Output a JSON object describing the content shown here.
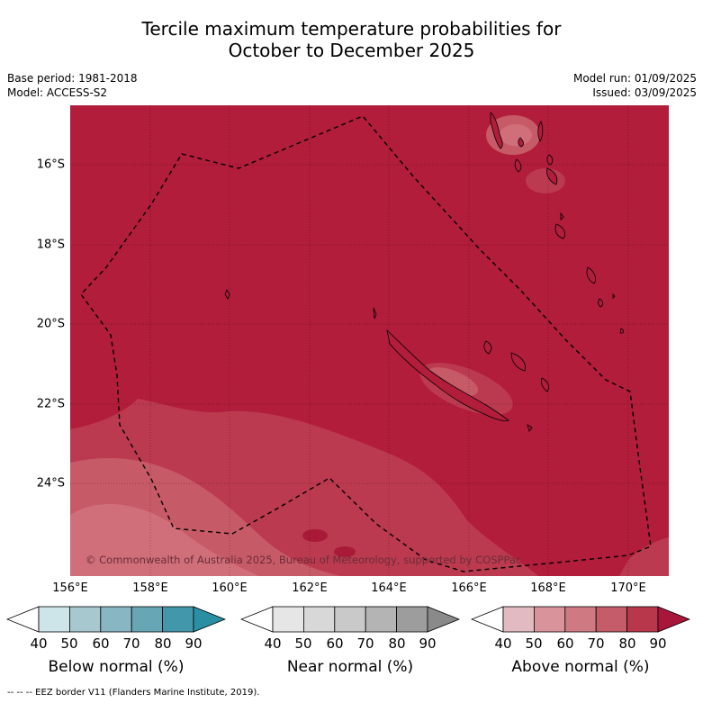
{
  "title_line1": "Tercile maximum temperature probabilities for",
  "title_line2": "October to December 2025",
  "base_period": "Base period: 1981-2018",
  "model": "Model: ACCESS-S2",
  "model_run": "Model run: 01/09/2025",
  "issued": "Issued: 03/09/2025",
  "copyright": "© Commonwealth of Australia 2025, Bureau of Meteorology, supported by COSPPac",
  "lat_labels": [
    "16°S",
    "18°S",
    "20°S",
    "22°S",
    "24°S"
  ],
  "lon_labels": [
    "156°E",
    "158°E",
    "160°E",
    "162°E",
    "164°E",
    "166°E",
    "168°E",
    "170°E"
  ],
  "colorbars": {
    "below": {
      "title": "Below normal (%)",
      "ticks": [
        "40",
        "50",
        "60",
        "70",
        "80",
        "90"
      ],
      "colors": [
        "#cde4e9",
        "#a8c8cf",
        "#88b6c2",
        "#67a6b4",
        "#4298aa",
        "#2a8fa3"
      ]
    },
    "near": {
      "title": "Near normal (%)",
      "ticks": [
        "40",
        "50",
        "60",
        "70",
        "80",
        "90"
      ],
      "colors": [
        "#e6e6e6",
        "#d8d8d8",
        "#c9c9c9",
        "#b4b4b4",
        "#9d9d9d",
        "#8a8a8a"
      ]
    },
    "above": {
      "title": "Above normal (%)",
      "ticks": [
        "40",
        "50",
        "60",
        "70",
        "80",
        "90"
      ],
      "colors": [
        "#e2bac1",
        "#d9939b",
        "#cf7a83",
        "#c55c69",
        "#b9374a",
        "#a8163a"
      ]
    }
  },
  "map_colors": {
    "dominant": "#b11d3b",
    "band80": "#bb3a4f",
    "band70": "#c75a67",
    "band60": "#d06f7a"
  },
  "footer": "--  --  -- EEZ border V11 (Flanders Marine Institute, 2019)."
}
